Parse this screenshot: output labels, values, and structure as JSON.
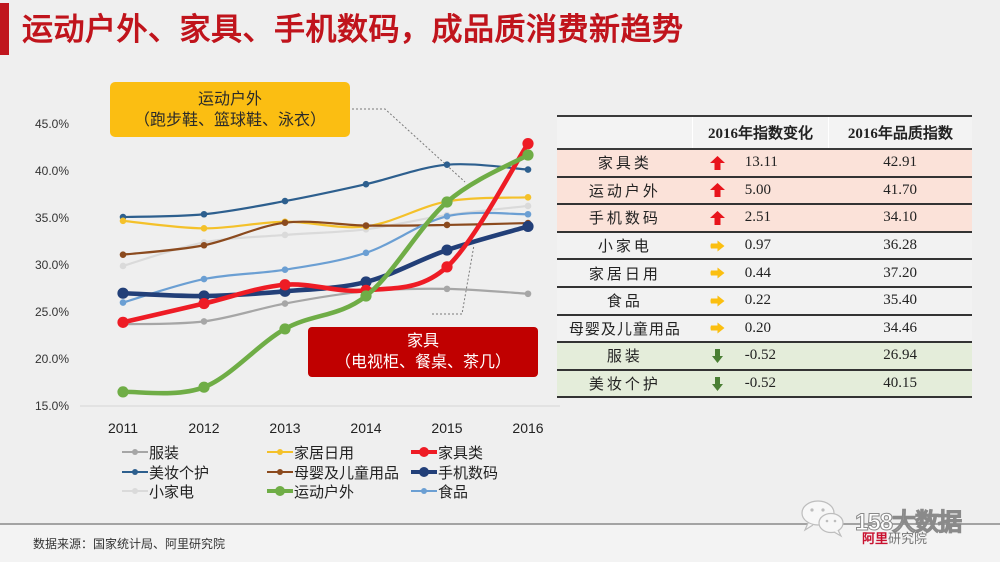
{
  "slide": {
    "title": "运动户外、家具、手机数码，成品质消费新趋势",
    "accent_color": "#c0161e"
  },
  "callouts": {
    "sports": {
      "title": "运动户外",
      "subtitle": "（跑步鞋、篮球鞋、泳衣）",
      "color": "#fbbe12"
    },
    "furniture": {
      "title": "家具",
      "subtitle": "（电视柜、餐桌、茶几）",
      "color": "#c00000"
    }
  },
  "chart_data": {
    "type": "line",
    "title": "",
    "xlabel": "",
    "ylabel": "",
    "x": [
      "2011",
      "2012",
      "2013",
      "2014",
      "2015",
      "2016"
    ],
    "ylim": [
      15,
      45
    ],
    "y_tick_values": [
      15,
      20,
      25,
      30,
      35,
      40,
      45
    ],
    "y_ticks": [
      "15.0%",
      "20.0%",
      "25.0%",
      "30.0%",
      "35.0%",
      "40.0%",
      "45.0%"
    ],
    "grid": false,
    "smooth": true,
    "legend_position": "bottom",
    "series": [
      {
        "name": "服装",
        "color": "#a6a6a6",
        "highlight": false,
        "values": [
          23.7,
          24.0,
          25.9,
          27.2,
          27.46,
          26.94
        ]
      },
      {
        "name": "美妆个护",
        "color": "#2d5f8e",
        "highlight": false,
        "values": [
          35.1,
          35.4,
          36.8,
          38.6,
          40.67,
          40.15
        ]
      },
      {
        "name": "小家电",
        "color": "#dadada",
        "highlight": false,
        "values": [
          29.9,
          32.4,
          33.2,
          33.8,
          35.31,
          36.28
        ]
      },
      {
        "name": "家居日用",
        "color": "#f4c12a",
        "highlight": false,
        "values": [
          34.7,
          33.9,
          34.6,
          34.1,
          36.76,
          37.2
        ]
      },
      {
        "name": "母婴及儿童用品",
        "color": "#8b4a1e",
        "highlight": false,
        "values": [
          31.1,
          32.1,
          34.5,
          34.2,
          34.26,
          34.46
        ]
      },
      {
        "name": "食品",
        "color": "#6b9fd3",
        "highlight": false,
        "values": [
          26.0,
          28.5,
          29.5,
          31.3,
          35.18,
          35.4
        ]
      },
      {
        "name": "手机数码",
        "color": "#223f78",
        "highlight": true,
        "values": [
          27.0,
          26.7,
          27.2,
          28.2,
          31.59,
          34.1
        ]
      },
      {
        "name": "家具类",
        "color": "#ee1c25",
        "highlight": true,
        "values": [
          23.9,
          25.9,
          27.9,
          27.3,
          29.8,
          42.91
        ]
      },
      {
        "name": "运动户外",
        "color": "#6fad46",
        "highlight": true,
        "values": [
          16.5,
          17.0,
          23.2,
          26.7,
          36.7,
          41.7
        ]
      }
    ]
  },
  "table": {
    "headers": [
      "",
      "2016年指数变化",
      "2016年品质指数"
    ],
    "trend_colors": {
      "up": "#e8141c",
      "flat": "#fbbf10",
      "down": "#4a7f34"
    },
    "rows": [
      {
        "category": "家具类",
        "trend": "up",
        "trend_icon": "arrow-up-icon",
        "change": "13.11",
        "index": "42.91"
      },
      {
        "category": "运动户外",
        "trend": "up",
        "trend_icon": "arrow-up-icon",
        "change": "5.00",
        "index": "41.70"
      },
      {
        "category": "手机数码",
        "trend": "up",
        "trend_icon": "arrow-up-icon",
        "change": "2.51",
        "index": "34.10"
      },
      {
        "category": "小家电",
        "trend": "flat",
        "trend_icon": "arrow-right-icon",
        "change": "0.97",
        "index": "36.28"
      },
      {
        "category": "家居日用",
        "trend": "flat",
        "trend_icon": "arrow-right-icon",
        "change": "0.44",
        "index": "37.20"
      },
      {
        "category": "食品",
        "trend": "flat",
        "trend_icon": "arrow-right-icon",
        "change": "0.22",
        "index": "35.40"
      },
      {
        "category": "母婴及儿童用品",
        "trend": "flat",
        "trend_icon": "arrow-right-icon",
        "change": "0.20",
        "index": "34.46"
      },
      {
        "category": "服装",
        "trend": "down",
        "trend_icon": "arrow-down-icon",
        "change": "-0.52",
        "index": "26.94"
      },
      {
        "category": "美妆个护",
        "trend": "down",
        "trend_icon": "arrow-down-icon",
        "change": "-0.52",
        "index": "40.15"
      }
    ]
  },
  "footer": {
    "source": "数据来源：国家统计局、阿里研究院"
  },
  "watermark": {
    "icon": "wechat-icon",
    "text": "158大数据",
    "logo_red": "阿里",
    "logo_gray": "研究院"
  }
}
